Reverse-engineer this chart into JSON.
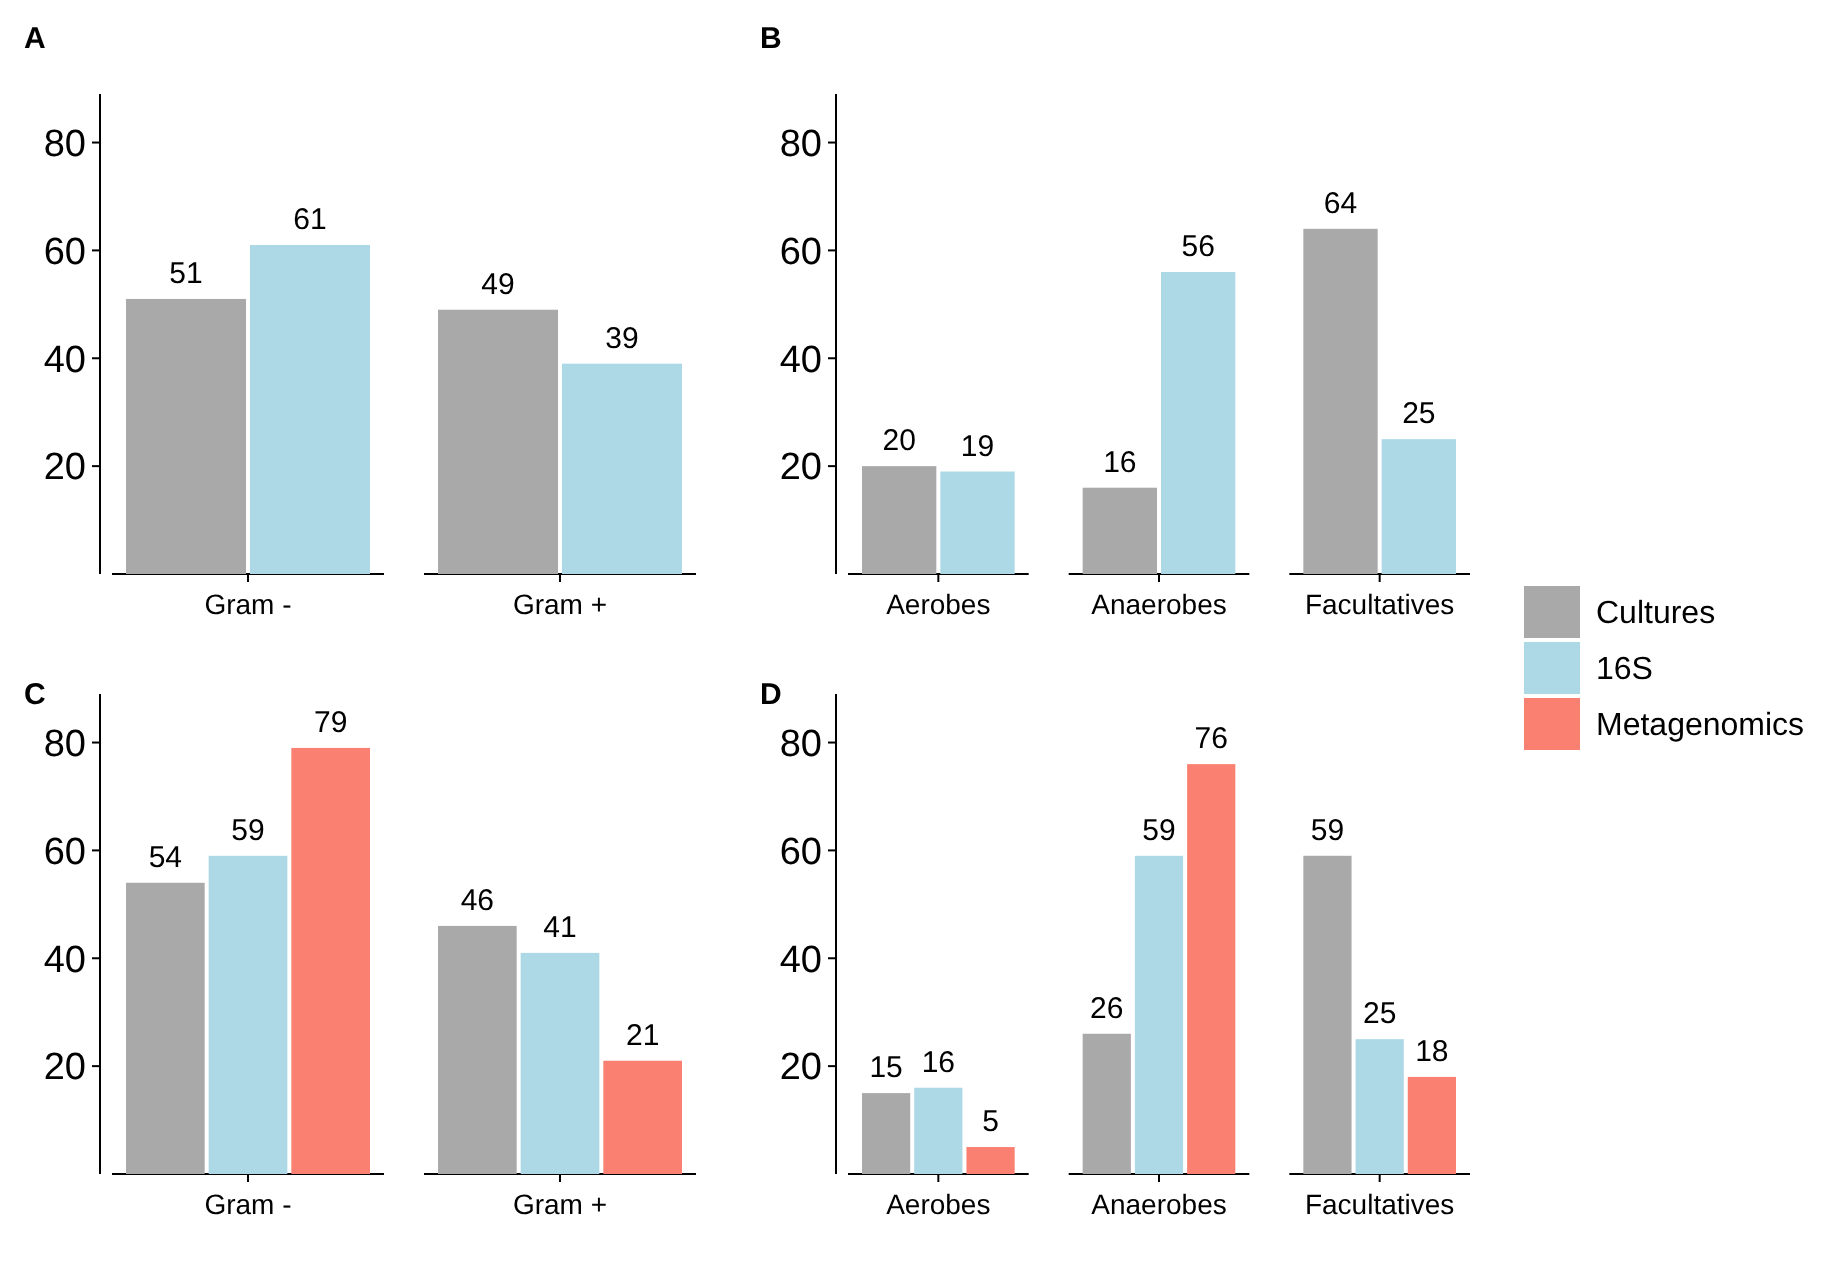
{
  "chart_data": [
    {
      "type": "bar",
      "title": "A",
      "categories": [
        "Gram -",
        "Gram +"
      ],
      "ylim": [
        0,
        89
      ],
      "yticks": [
        20,
        40,
        60,
        80
      ],
      "grid": false,
      "data_labels": true,
      "legend": false,
      "series": [
        {
          "color": "#a9a9a9",
          "values": [
            51,
            49
          ]
        },
        {
          "color": "#add8e6",
          "values": [
            61,
            39
          ]
        }
      ]
    },
    {
      "type": "bar",
      "title": "B",
      "categories": [
        "Aerobes",
        "Anaerobes",
        "Facultatives"
      ],
      "ylim": [
        0,
        89
      ],
      "yticks": [
        20,
        40,
        60,
        80
      ],
      "grid": false,
      "data_labels": true,
      "legend": false,
      "series": [
        {
          "color": "#a9a9a9",
          "values": [
            20,
            16,
            64
          ]
        },
        {
          "color": "#add8e6",
          "values": [
            19,
            56,
            25
          ]
        }
      ]
    },
    {
      "type": "bar",
      "title": "C",
      "categories": [
        "Gram -",
        "Gram +"
      ],
      "ylim": [
        0,
        89
      ],
      "yticks": [
        20,
        40,
        60,
        80
      ],
      "grid": false,
      "data_labels": true,
      "legend": false,
      "series": [
        {
          "color": "#a9a9a9",
          "values": [
            54,
            46
          ]
        },
        {
          "color": "#add8e6",
          "values": [
            59,
            41
          ]
        },
        {
          "color": "#fa8072",
          "values": [
            79,
            21
          ]
        }
      ]
    },
    {
      "type": "bar",
      "title": "D",
      "categories": [
        "Aerobes",
        "Anaerobes",
        "Facultatives"
      ],
      "ylim": [
        0,
        89
      ],
      "yticks": [
        20,
        40,
        60,
        80
      ],
      "grid": false,
      "data_labels": true,
      "legend": "right",
      "series": [
        {
          "name": "Cultures",
          "color": "#a9a9a9",
          "values": [
            15,
            26,
            59
          ]
        },
        {
          "name": "16S",
          "color": "#add8e6",
          "values": [
            16,
            59,
            25
          ]
        },
        {
          "name": "Metagenomics",
          "color": "#fa8072",
          "values": [
            5,
            76,
            18
          ]
        }
      ]
    }
  ]
}
